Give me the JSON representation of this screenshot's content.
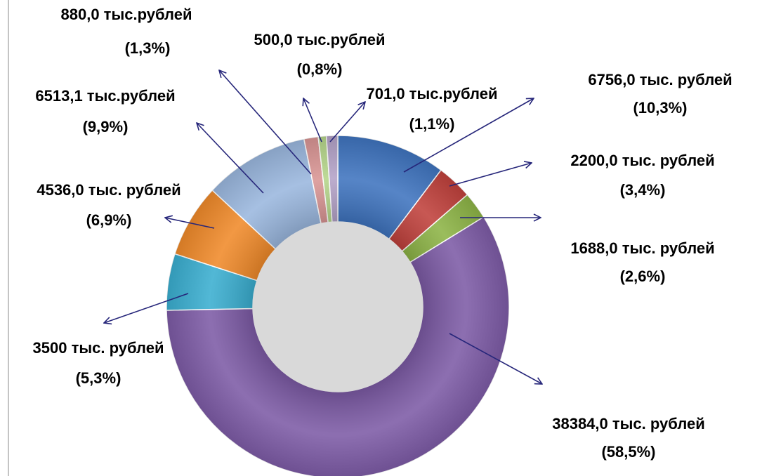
{
  "chart_data": {
    "type": "pie",
    "categories": [
      null,
      null,
      null,
      null,
      null,
      null,
      null,
      null,
      null,
      null
    ],
    "values": [
      6756,
      2200,
      1688,
      38384,
      3500,
      4536,
      6513.1,
      880,
      500,
      701
    ],
    "value_labels": [
      "6756,0 тыс. рублей",
      "2200,0 тыс. рублей",
      "1688,0 тыс. рублей",
      "38384,0 тыс. рублей",
      "3500 тыс. рублей",
      "4536,0 тыс. рублей",
      "6513,1 тыс.рублей",
      "880,0 тыс.рублей",
      "500,0 тыс.рублей",
      "701,0 тыс.рублей"
    ],
    "percent_labels": [
      "(10,3%)",
      "(3,4%)",
      "(2,6%)",
      "(58,5%)",
      "(5,3%)",
      "(6,9%)",
      "(9,9%)",
      "(1,3%)",
      "(0,8%)",
      "(1,1%)"
    ],
    "colors": [
      "#3f74bf",
      "#c0413c",
      "#8db446",
      "#7d5ba6",
      "#3aaed0",
      "#f08a2a",
      "#9ab7de",
      "#d99594",
      "#b5d58a",
      "#b3a2c7"
    ],
    "donut": true
  }
}
